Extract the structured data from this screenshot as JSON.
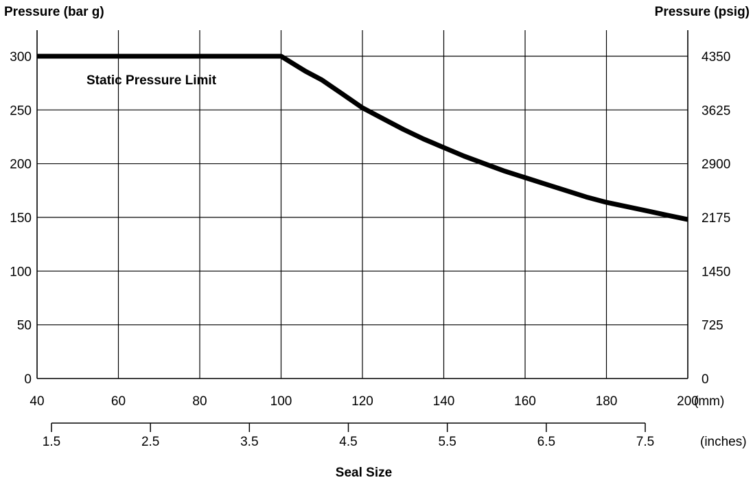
{
  "chart_data": {
    "type": "line",
    "title": "",
    "ylabel_left": "Pressure (bar g)",
    "ylabel_right": "Pressure (psig)",
    "xlabel": "Seal Size",
    "x_unit": "(mm)",
    "x2_unit": "(inches)",
    "xlim": [
      40,
      200
    ],
    "ylim": [
      0,
      300
    ],
    "grid": true,
    "x_ticks": [
      "40",
      "60",
      "80",
      "100",
      "120",
      "140",
      "160",
      "180",
      "200"
    ],
    "x_tick_values": [
      40,
      60,
      80,
      100,
      120,
      140,
      160,
      180,
      200
    ],
    "y_ticks_left": [
      "0",
      "50",
      "100",
      "150",
      "200",
      "250",
      "300"
    ],
    "y_tick_values": [
      0,
      50,
      100,
      150,
      200,
      250,
      300
    ],
    "y_ticks_right": [
      "0",
      "725",
      "1450",
      "2175",
      "2900",
      "3625",
      "4350"
    ],
    "x2_ticks": [
      "1.5",
      "2.5",
      "3.5",
      "4.5",
      "5.5",
      "6.5",
      "7.5"
    ],
    "x2_tick_values": [
      1.5,
      2.5,
      3.5,
      4.5,
      5.5,
      6.5,
      7.5
    ],
    "annotation": "Static Pressure Limit",
    "series": [
      {
        "x": [
          40,
          60,
          80,
          100,
          103,
          106,
          110,
          115,
          120,
          125,
          130,
          135,
          140,
          145,
          150,
          155,
          160,
          165,
          170,
          175,
          180,
          185,
          190,
          195,
          200
        ],
        "y": [
          300,
          300,
          300,
          300,
          293,
          286,
          278,
          265,
          252,
          242,
          232,
          223,
          215,
          207,
          200,
          193,
          187,
          181,
          175,
          169,
          164,
          160,
          156,
          152,
          148
        ]
      }
    ]
  }
}
